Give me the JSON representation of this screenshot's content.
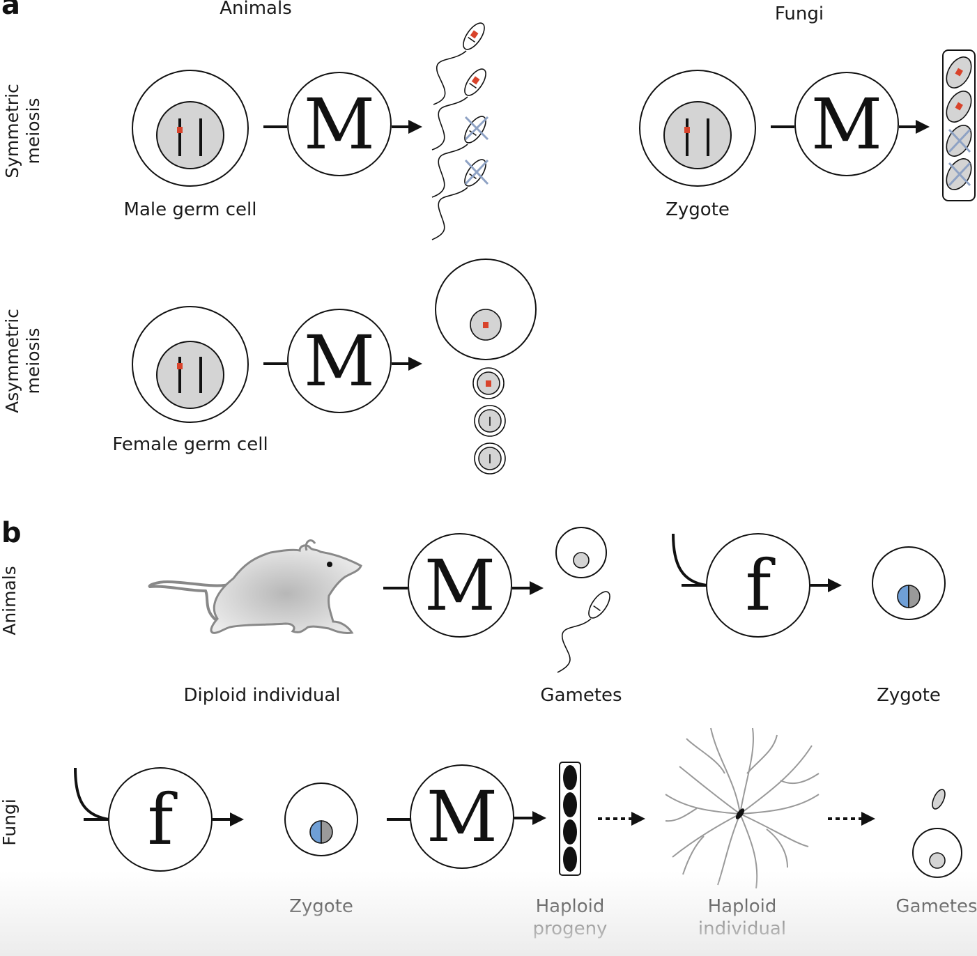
{
  "panel_a": {
    "letter": "a",
    "column_animals": "Animals",
    "column_fungi": "Fungi",
    "row_symmetric_line1": "Symmetric",
    "row_symmetric_line2": "meiosis",
    "row_asymmetric_line1": "Asymmetric",
    "row_asymmetric_line2": "meiosis",
    "male_germ_cell": "Male germ cell",
    "zygote": "Zygote",
    "female_germ_cell": "Female germ cell"
  },
  "panel_b": {
    "letter": "b",
    "row_animals": "Animals",
    "row_fungi": "Fungi",
    "diploid_individual": "Diploid individual",
    "gametes_animals": "Gametes",
    "zygote_animals": "Zygote",
    "zygote_fungi": "Zygote",
    "haploid_progeny_line1": "Haploid",
    "haploid_progeny_line2": "progeny",
    "haploid_individual_line1": "Haploid",
    "haploid_individual_line2": "individual",
    "gametes_fungi": "Gametes"
  },
  "symbols": {
    "meiosis": "M",
    "fertilization": "f"
  },
  "colors": {
    "red_marker": "#d8432b",
    "nucleus_gray": "#d4d4d4",
    "blue_half": "#6f9fd6",
    "gray_half": "#9a9a9a",
    "cross_blue": "#8ea2c4"
  }
}
